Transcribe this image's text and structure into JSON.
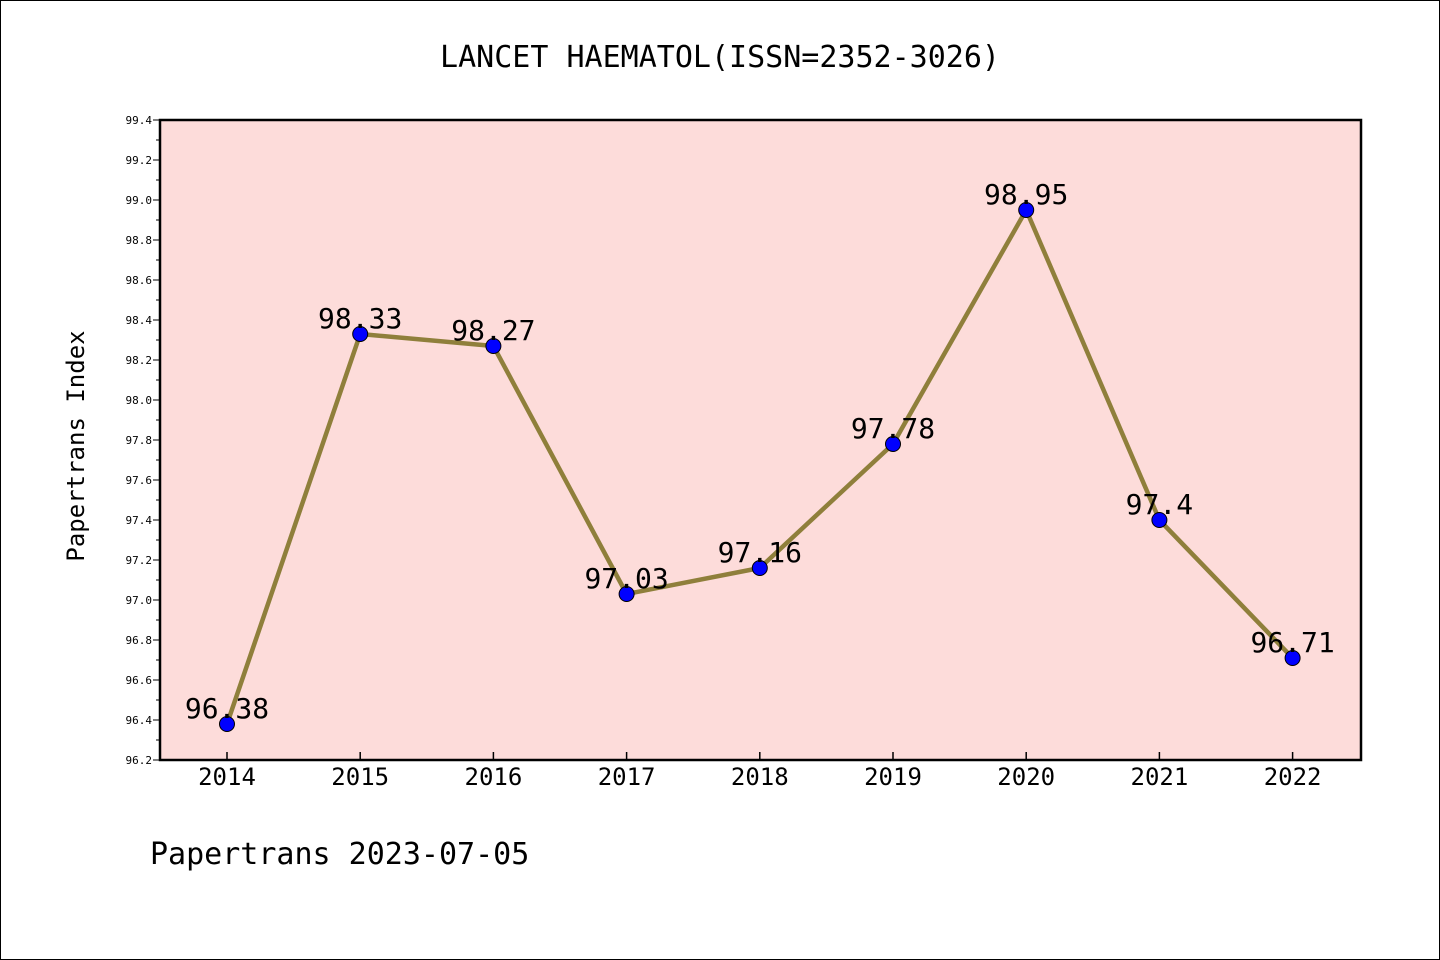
{
  "chart_data": {
    "type": "line",
    "title": "LANCET HAEMATOL(ISSN=2352-3026)",
    "xlabel": "",
    "ylabel": "Papertrans Index",
    "footer": "Papertrans 2023-07-05",
    "categories": [
      "2014",
      "2015",
      "2016",
      "2017",
      "2018",
      "2019",
      "2020",
      "2021",
      "2022"
    ],
    "values": [
      96.38,
      98.33,
      98.27,
      97.03,
      97.16,
      97.78,
      98.95,
      97.4,
      96.71
    ],
    "data_labels": [
      "96.38",
      "98.33",
      "98.27",
      "97.03",
      "97.16",
      "97.78",
      "98.95",
      "97.4",
      "96.71"
    ],
    "ylim": [
      96.2,
      99.4
    ],
    "yticks": [
      "96.2",
      "96.4",
      "96.6",
      "96.8",
      "97.0",
      "97.2",
      "97.4",
      "97.6",
      "97.8",
      "98.0",
      "98.2",
      "98.4",
      "98.6",
      "98.8",
      "99.0",
      "99.2",
      "99.4"
    ],
    "grid": false,
    "legend": "none",
    "colors": {
      "plot_background": "#fddcda",
      "line": "#8f7f3b",
      "marker": "#0000ff"
    }
  }
}
